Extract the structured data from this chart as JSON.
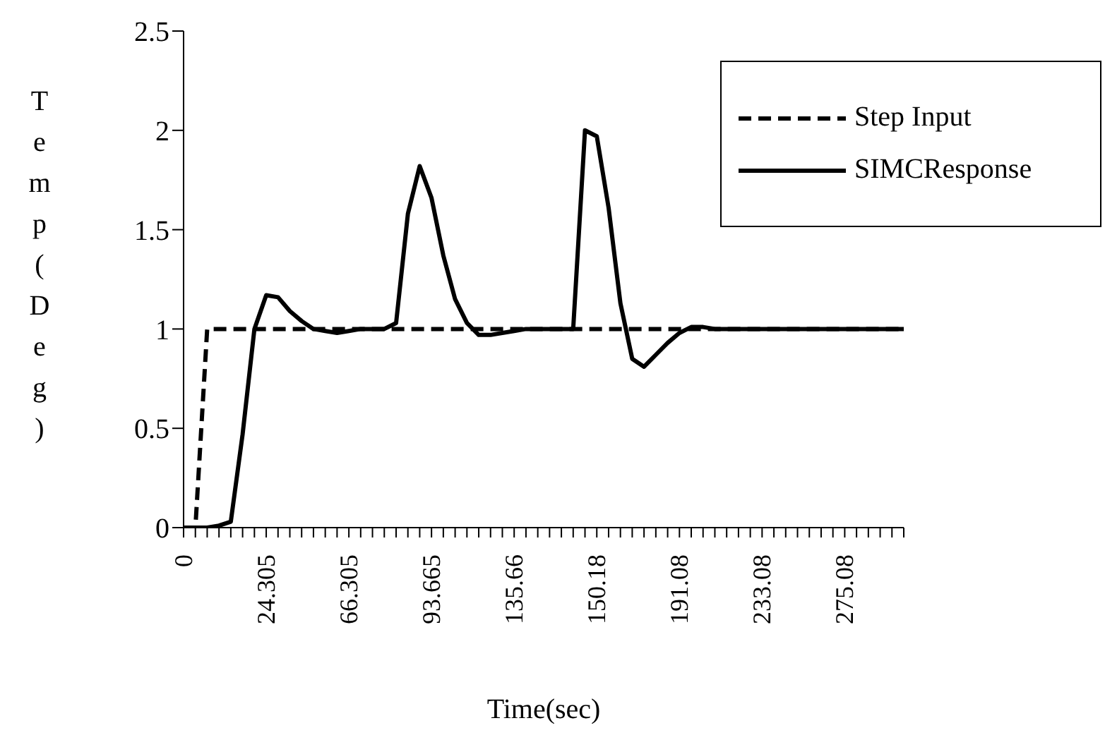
{
  "chart_data": {
    "type": "line",
    "xlabel": "Time(sec)",
    "ylabel": "Temp(Deg)",
    "categories": [
      "0",
      null,
      null,
      null,
      null,
      null,
      null,
      "24.305",
      null,
      null,
      null,
      null,
      null,
      null,
      "66.305",
      null,
      null,
      null,
      null,
      null,
      null,
      "93.665",
      null,
      null,
      null,
      null,
      null,
      null,
      "135.66",
      null,
      null,
      null,
      null,
      null,
      null,
      "150.18",
      null,
      null,
      null,
      null,
      null,
      null,
      "191.08",
      null,
      null,
      null,
      null,
      null,
      null,
      "233.08",
      null,
      null,
      null,
      null,
      null,
      null,
      "275.08",
      null,
      null,
      null,
      null,
      null
    ],
    "series": [
      {
        "name": "Step Input",
        "color": "#000000",
        "line_style": "dashed",
        "values": [
          0,
          0,
          1,
          1,
          1,
          1,
          1,
          1,
          1,
          1,
          1,
          1,
          1,
          1,
          1,
          1,
          1,
          1,
          1,
          1,
          1,
          1,
          1,
          1,
          1,
          1,
          1,
          1,
          1,
          1,
          1,
          1,
          1,
          1,
          1,
          1,
          1,
          1,
          1,
          1,
          1,
          1,
          1,
          1,
          1,
          1,
          1,
          1,
          1,
          1,
          1,
          1,
          1,
          1,
          1,
          1,
          1,
          1,
          1,
          1,
          1,
          1
        ]
      },
      {
        "name": "SIMCResponse",
        "color": "#000000",
        "line_style": "solid",
        "values": [
          0,
          0,
          0,
          0.01,
          0.03,
          0.47,
          1,
          1.17,
          1.16,
          1.09,
          1.04,
          1,
          0.99,
          0.98,
          0.99,
          1,
          1,
          1,
          1.03,
          1.58,
          1.82,
          1.66,
          1.37,
          1.15,
          1.03,
          0.97,
          0.97,
          0.98,
          0.99,
          1,
          1,
          1,
          1,
          1,
          2,
          1.97,
          1.61,
          1.13,
          0.85,
          0.81,
          0.87,
          0.93,
          0.98,
          1.01,
          1.01,
          1,
          1,
          1,
          1,
          1,
          1,
          1,
          1,
          1,
          1,
          1,
          1,
          1,
          1,
          1,
          1,
          1
        ]
      }
    ],
    "ylim": [
      0,
      2.5
    ],
    "yticks": [
      0,
      0.5,
      1,
      1.5,
      2,
      2.5
    ],
    "grid": false,
    "legend": "top right",
    "marker": "none"
  }
}
